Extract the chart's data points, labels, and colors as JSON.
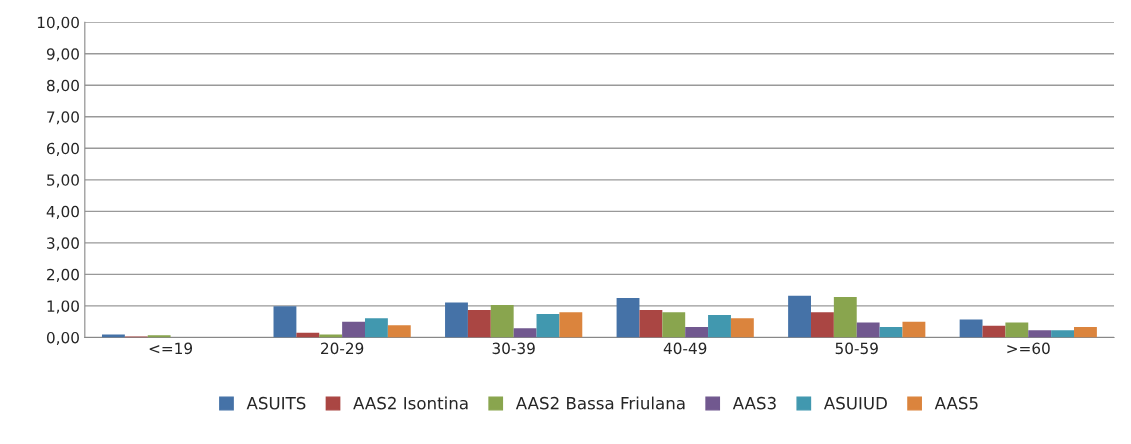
{
  "chart_data": {
    "type": "bar",
    "categories": [
      "<=19",
      "20-29",
      "30-39",
      "40-49",
      "50-59",
      ">=60"
    ],
    "series": [
      {
        "name": "ASUITS",
        "color": "#4572a7",
        "values": [
          0.09,
          0.99,
          1.11,
          1.25,
          1.32,
          0.57
        ]
      },
      {
        "name": "AAS2 Isontina",
        "color": "#aa4643",
        "values": [
          0.03,
          0.15,
          0.87,
          0.87,
          0.8,
          0.37
        ]
      },
      {
        "name": "AAS2 Bassa Friulana",
        "color": "#89a54e",
        "values": [
          0.07,
          0.09,
          1.03,
          0.8,
          1.28,
          0.47
        ]
      },
      {
        "name": "AAS3",
        "color": "#71588f",
        "values": [
          null,
          0.5,
          0.29,
          0.33,
          0.47,
          0.23
        ]
      },
      {
        "name": "ASUIUD",
        "color": "#4198af",
        "values": [
          null,
          0.61,
          0.74,
          0.71,
          0.33,
          0.23
        ]
      },
      {
        "name": "AAS5",
        "color": "#db843d",
        "values": [
          null,
          0.39,
          0.8,
          0.61,
          0.5,
          0.33
        ]
      }
    ],
    "ylim": [
      0,
      10
    ],
    "yticks": [
      {
        "value": 0,
        "label": "0,00"
      },
      {
        "value": 1,
        "label": "1,00"
      },
      {
        "value": 2,
        "label": "2,00"
      },
      {
        "value": 3,
        "label": "3,00"
      },
      {
        "value": 4,
        "label": "4,00"
      },
      {
        "value": 5,
        "label": "5,00"
      },
      {
        "value": 6,
        "label": "6,00"
      },
      {
        "value": 7,
        "label": "7,00"
      },
      {
        "value": 8,
        "label": "8,00"
      },
      {
        "value": 9,
        "label": "9,00"
      },
      {
        "value": 10,
        "label": "10,00"
      }
    ],
    "grid": "y",
    "legend": "bottom"
  }
}
